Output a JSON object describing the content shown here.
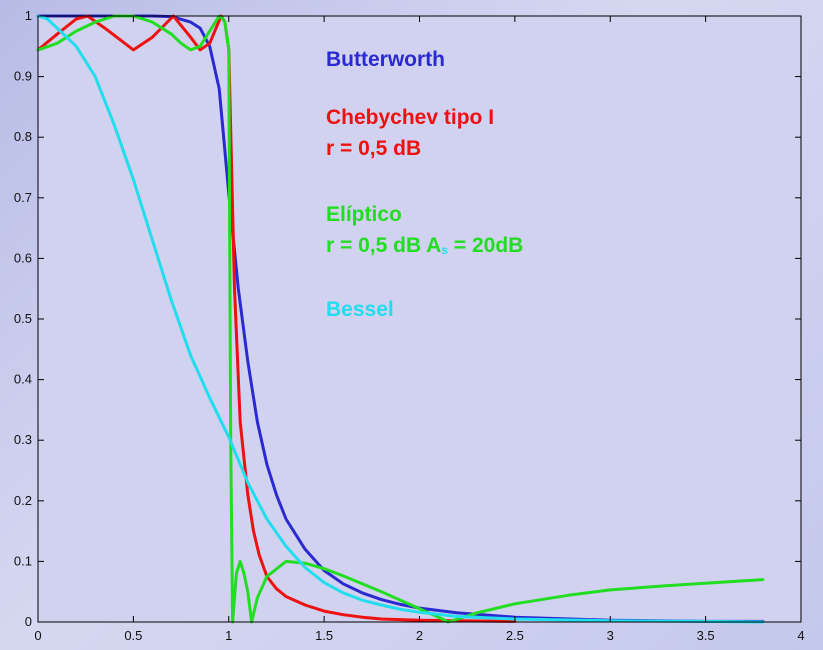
{
  "chart_data": {
    "type": "line",
    "xlim": [
      0,
      4
    ],
    "ylim": [
      0,
      1
    ],
    "x_ticks": [
      "0",
      "0.5",
      "1",
      "1.5",
      "2",
      "2.5",
      "3",
      "3.5",
      "4"
    ],
    "y_ticks": [
      "0",
      "0.1",
      "0.2",
      "0.3",
      "0.4",
      "0.5",
      "0.6",
      "0.7",
      "0.8",
      "0.9",
      "1"
    ],
    "grid": false,
    "annotations": {
      "butterworth": "Butterworth",
      "chebychev": "Chebychev tipo I",
      "chebychev_r": "r  =  0,5 dB",
      "eliptico": "Elíptico",
      "eliptico_r": "r  =  0,5 dB  A",
      "eliptico_sub": "s",
      "eliptico_as": " = 20dB",
      "bessel": "Bessel"
    },
    "colors": {
      "butterworth": "#2a2ad0",
      "chebychev": "#ee1111",
      "eliptico": "#22dd22",
      "bessel": "#22ddee",
      "axes": "#000000",
      "plot_background": "#d0d2ef"
    },
    "series": [
      {
        "key": "butterworth",
        "x": [
          0,
          0.2,
          0.4,
          0.6,
          0.7,
          0.8,
          0.85,
          0.9,
          0.95,
          1.0,
          1.05,
          1.1,
          1.15,
          1.2,
          1.25,
          1.3,
          1.4,
          1.5,
          1.6,
          1.7,
          1.8,
          1.9,
          2.0,
          2.2,
          2.5,
          3.0,
          3.5,
          3.8
        ],
        "y": [
          1.0,
          1.0,
          1.0,
          1.0,
          0.999,
          0.99,
          0.98,
          0.95,
          0.88,
          0.707,
          0.55,
          0.43,
          0.33,
          0.26,
          0.21,
          0.17,
          0.12,
          0.085,
          0.063,
          0.048,
          0.037,
          0.029,
          0.023,
          0.015,
          0.008,
          0.003,
          0.001,
          0.001
        ]
      },
      {
        "key": "chebychev",
        "x": [
          0,
          0.1,
          0.2,
          0.26,
          0.35,
          0.5,
          0.6,
          0.71,
          0.8,
          0.85,
          0.9,
          0.96,
          0.98,
          1.0,
          1.03,
          1.06,
          1.1,
          1.13,
          1.16,
          1.2,
          1.25,
          1.3,
          1.4,
          1.5,
          1.6,
          1.7,
          1.8,
          2.0,
          2.5
        ],
        "y": [
          0.944,
          0.97,
          0.995,
          1.0,
          0.98,
          0.944,
          0.965,
          1.0,
          0.965,
          0.944,
          0.955,
          1.0,
          0.99,
          0.944,
          0.55,
          0.33,
          0.21,
          0.15,
          0.11,
          0.075,
          0.055,
          0.042,
          0.028,
          0.018,
          0.012,
          0.008,
          0.005,
          0.003,
          0.001
        ]
      },
      {
        "key": "eliptico",
        "x": [
          0,
          0.1,
          0.2,
          0.3,
          0.4,
          0.5,
          0.6,
          0.7,
          0.75,
          0.8,
          0.85,
          0.9,
          0.95,
          0.97,
          0.98,
          1.0,
          1.01,
          1.02,
          1.04,
          1.06,
          1.08,
          1.1,
          1.12,
          1.15,
          1.2,
          1.3,
          1.4,
          1.5,
          1.6,
          1.8,
          2.0,
          2.1,
          2.15,
          2.2,
          2.3,
          2.5,
          2.8,
          3.0,
          3.3,
          3.6,
          3.8
        ],
        "y": [
          0.944,
          0.955,
          0.975,
          0.99,
          1.0,
          1.0,
          0.99,
          0.97,
          0.955,
          0.944,
          0.95,
          0.975,
          1.0,
          0.995,
          0.99,
          0.944,
          0.3,
          0.0,
          0.08,
          0.1,
          0.08,
          0.05,
          0.0,
          0.04,
          0.075,
          0.1,
          0.097,
          0.088,
          0.076,
          0.05,
          0.022,
          0.008,
          0.0,
          0.005,
          0.015,
          0.03,
          0.045,
          0.053,
          0.06,
          0.066,
          0.07
        ]
      },
      {
        "key": "bessel",
        "x": [
          0,
          0.05,
          0.1,
          0.2,
          0.3,
          0.4,
          0.5,
          0.6,
          0.7,
          0.8,
          0.9,
          1.0,
          1.1,
          1.2,
          1.3,
          1.4,
          1.5,
          1.6,
          1.7,
          1.8,
          1.9,
          2.0,
          2.2,
          2.5,
          3.0,
          3.5,
          3.8
        ],
        "y": [
          1.0,
          0.995,
          0.98,
          0.95,
          0.9,
          0.82,
          0.73,
          0.63,
          0.53,
          0.44,
          0.37,
          0.305,
          0.23,
          0.17,
          0.125,
          0.09,
          0.065,
          0.048,
          0.036,
          0.028,
          0.021,
          0.016,
          0.009,
          0.005,
          0.002,
          0.001,
          0.0
        ]
      }
    ]
  }
}
